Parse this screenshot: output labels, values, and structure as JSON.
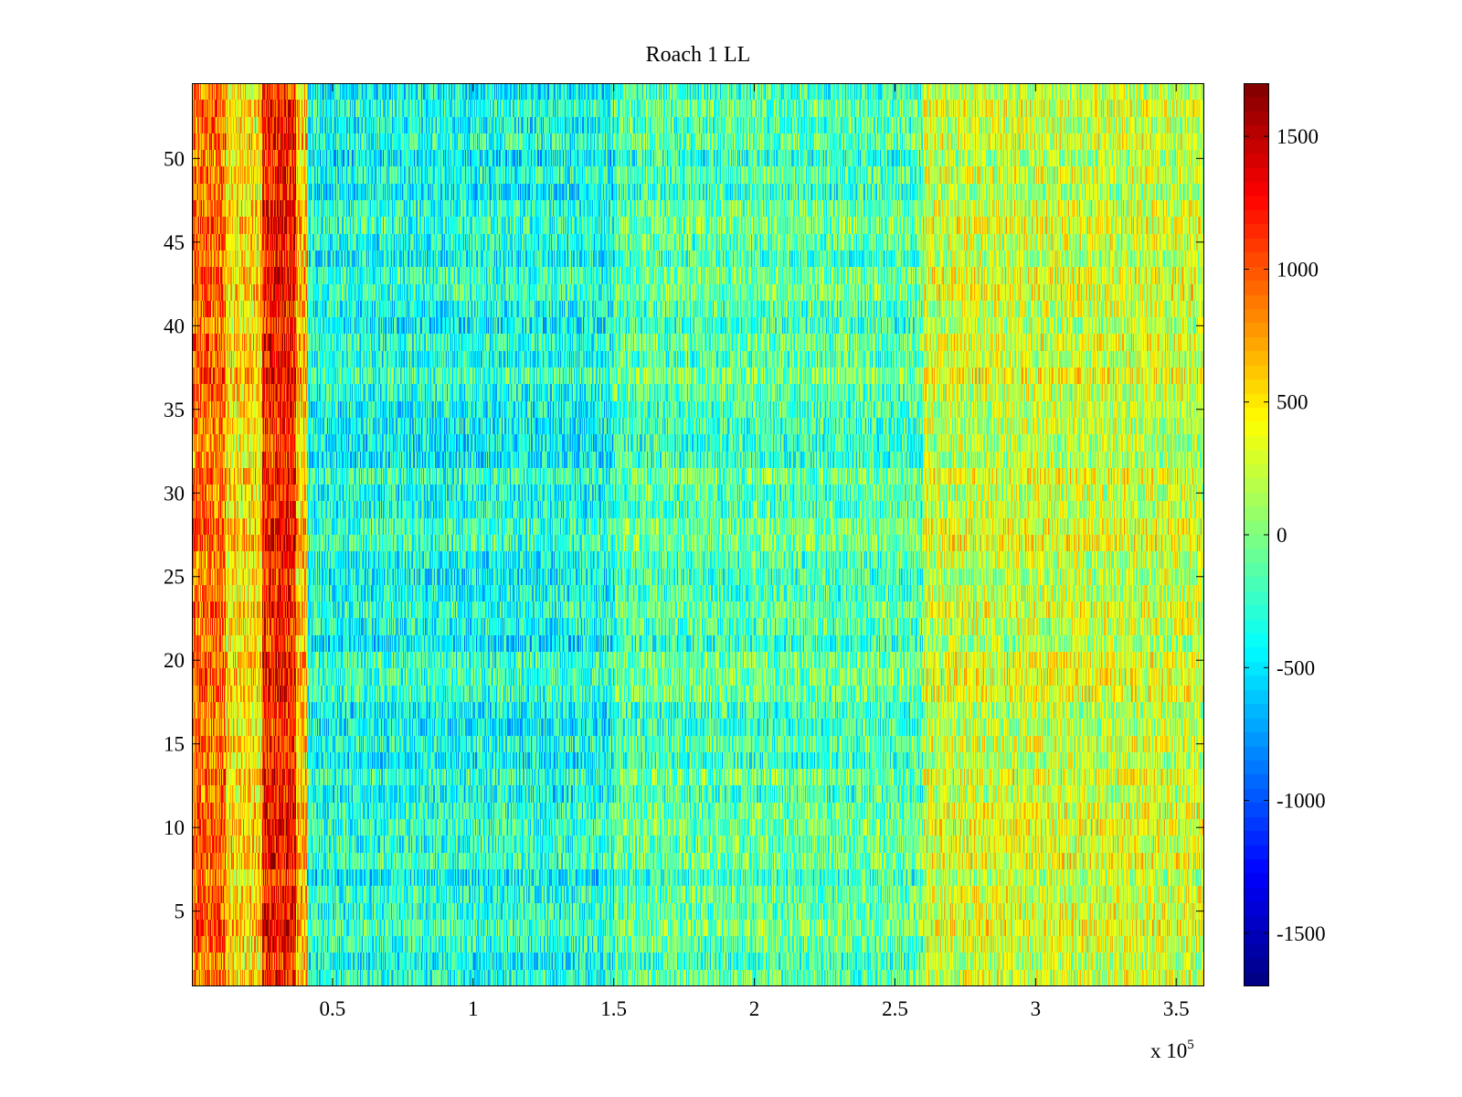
{
  "chart_data": {
    "type": "heatmap",
    "title": "Roach 1 LL",
    "xlabel": "",
    "ylabel": "",
    "x_multiplier_label": "x 10",
    "x_multiplier_exponent": "5",
    "xlim": [
      0,
      3.6
    ],
    "ylim": [
      0.5,
      54.5
    ],
    "x_ticks": [
      0.5,
      1,
      1.5,
      2,
      2.5,
      3,
      3.5
    ],
    "x_tick_labels": [
      "0.5",
      "1",
      "1.5",
      "2",
      "2.5",
      "3",
      "3.5"
    ],
    "y_ticks": [
      5,
      10,
      15,
      20,
      25,
      30,
      35,
      40,
      45,
      50
    ],
    "y_tick_labels": [
      "5",
      "10",
      "15",
      "20",
      "25",
      "30",
      "35",
      "40",
      "45",
      "50"
    ],
    "rows": 54,
    "colormap": "jet",
    "colorbar": {
      "range": [
        -1700,
        1700
      ],
      "ticks": [
        -1500,
        -1000,
        -500,
        0,
        500,
        1000,
        1500
      ],
      "tick_labels": [
        "-1500",
        "-1000",
        "-500",
        "0",
        "500",
        "1000",
        "1500"
      ],
      "placement": "right"
    },
    "value_profile": {
      "description_bands": [
        {
          "x_from": 0.0,
          "x_to": 0.12,
          "mean": 900
        },
        {
          "x_from": 0.12,
          "x_to": 0.25,
          "mean": 500
        },
        {
          "x_from": 0.25,
          "x_to": 0.37,
          "mean": 1200
        },
        {
          "x_from": 0.37,
          "x_to": 0.41,
          "mean": 600
        },
        {
          "x_from": 0.41,
          "x_to": 1.5,
          "mean": -350
        },
        {
          "x_from": 1.5,
          "x_to": 2.6,
          "mean": -150
        },
        {
          "x_from": 2.6,
          "x_to": 3.6,
          "mean": 250
        }
      ]
    },
    "grid": false
  },
  "colors": {
    "background": "#ffffff",
    "axis": "#000000"
  }
}
